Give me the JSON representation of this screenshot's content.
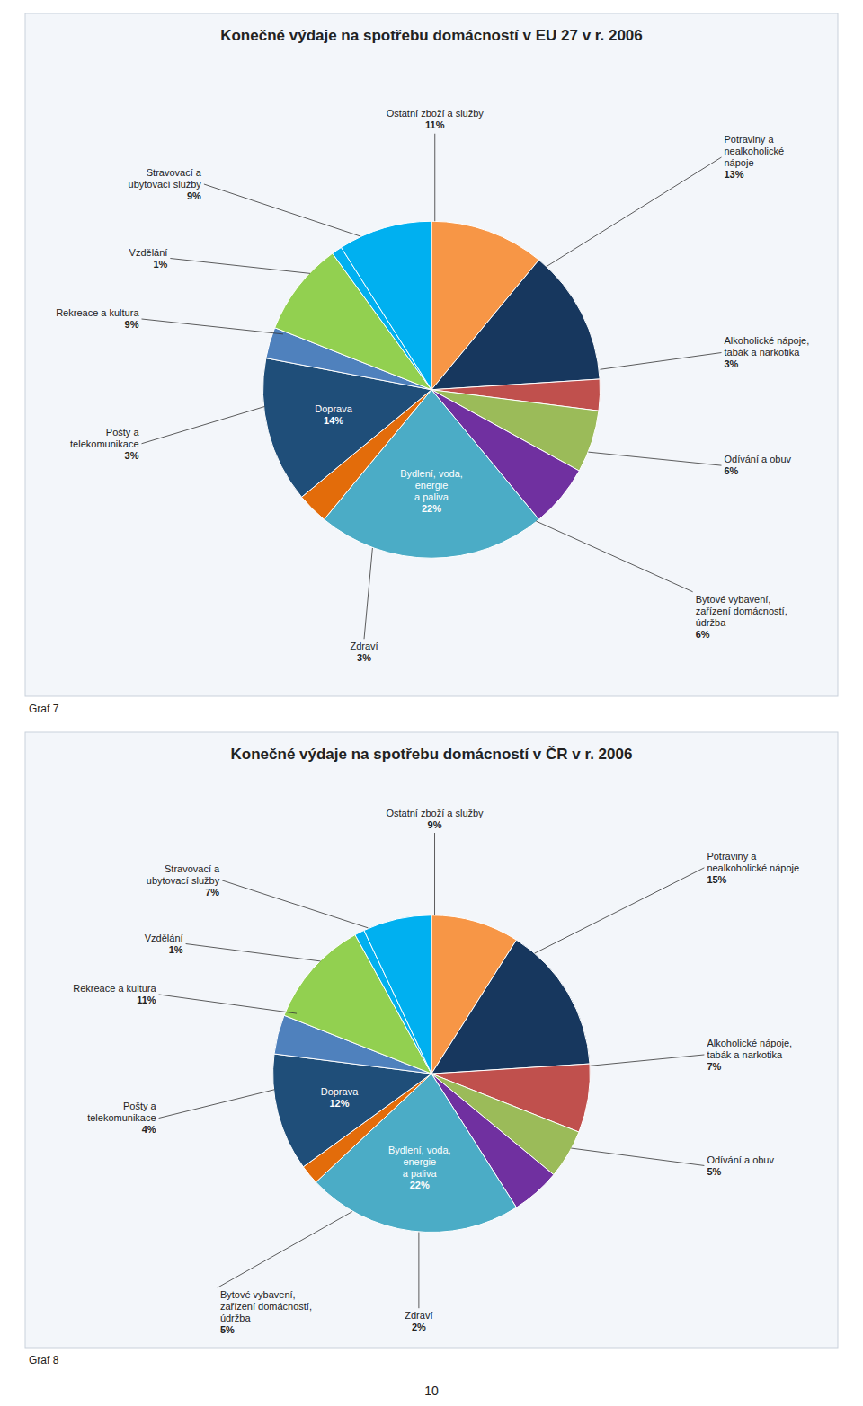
{
  "chart_data": [
    {
      "type": "pie",
      "title": "Konečné výdaje na spotřebu domácností v EU 27 v r. 2006",
      "categories": [
        "Ostatní zboží a služby",
        "Potraviny a\nnealkoholické\nnápoje",
        "Alkoholické nápoje,\ntabák a narkotika",
        "Odívání a obuv",
        "Bytové vybavení,\nzařízení domácností,\núdržba",
        "Bydlení, voda,\nenergie\na paliva",
        "Zdraví",
        "Doprava",
        "Pošty a\ntelekomunikace",
        "Rekreace a kultura",
        "Vzdělání",
        "Stravovací a\nubytovací služby"
      ],
      "values": [
        11,
        13,
        3,
        6,
        6,
        22,
        3,
        14,
        3,
        9,
        1,
        9
      ],
      "value_labels": [
        "11%",
        "13%",
        "3%",
        "6%",
        "6%",
        "22%",
        "3%",
        "14%",
        "3%",
        "9%",
        "1%",
        "9%"
      ],
      "data_labels": true,
      "colors": [
        "#F79646",
        "#17375E",
        "#C0504D",
        "#9BBB59",
        "#7030A0",
        "#4BACC6",
        "#E36C0A",
        "#1F4E79",
        "#4F81BD",
        "#92D050",
        "#00B0F0",
        "#00B0F0"
      ],
      "annotations": [
        "Graf  7"
      ]
    },
    {
      "type": "pie",
      "title": "Konečné výdaje na spotřebu domácností v ČR v r. 2006",
      "categories": [
        "Ostatní zboží a služby",
        "Potraviny a\nnealkoholické nápoje",
        "Alkoholické nápoje,\ntabák a narkotika",
        "Odívání a obuv",
        "Bytové vybavení,\nzařízení domácností,\núdržba",
        "Bydlení, voda,\nenergie\na paliva",
        "Zdraví",
        "Doprava",
        "Pošty a\ntelekomunikace",
        "Rekreace a kultura",
        "Vzdělání",
        "Stravovací a\nubytovací služby"
      ],
      "values": [
        9,
        15,
        7,
        5,
        5,
        22,
        2,
        12,
        4,
        11,
        1,
        7
      ],
      "value_labels": [
        "9%",
        "15%",
        "7%",
        "5%",
        "5%",
        "22%",
        "2%",
        "12%",
        "4%",
        "11%",
        "1%",
        "7%"
      ],
      "data_labels": true,
      "colors": [
        "#F79646",
        "#17375E",
        "#C0504D",
        "#9BBB59",
        "#7030A0",
        "#4BACC6",
        "#E36C0A",
        "#1F4E79",
        "#4F81BD",
        "#92D050",
        "#00B0F0",
        "#00B0F0"
      ],
      "annotations": [
        "Graf  8"
      ]
    }
  ],
  "page_number": "10"
}
